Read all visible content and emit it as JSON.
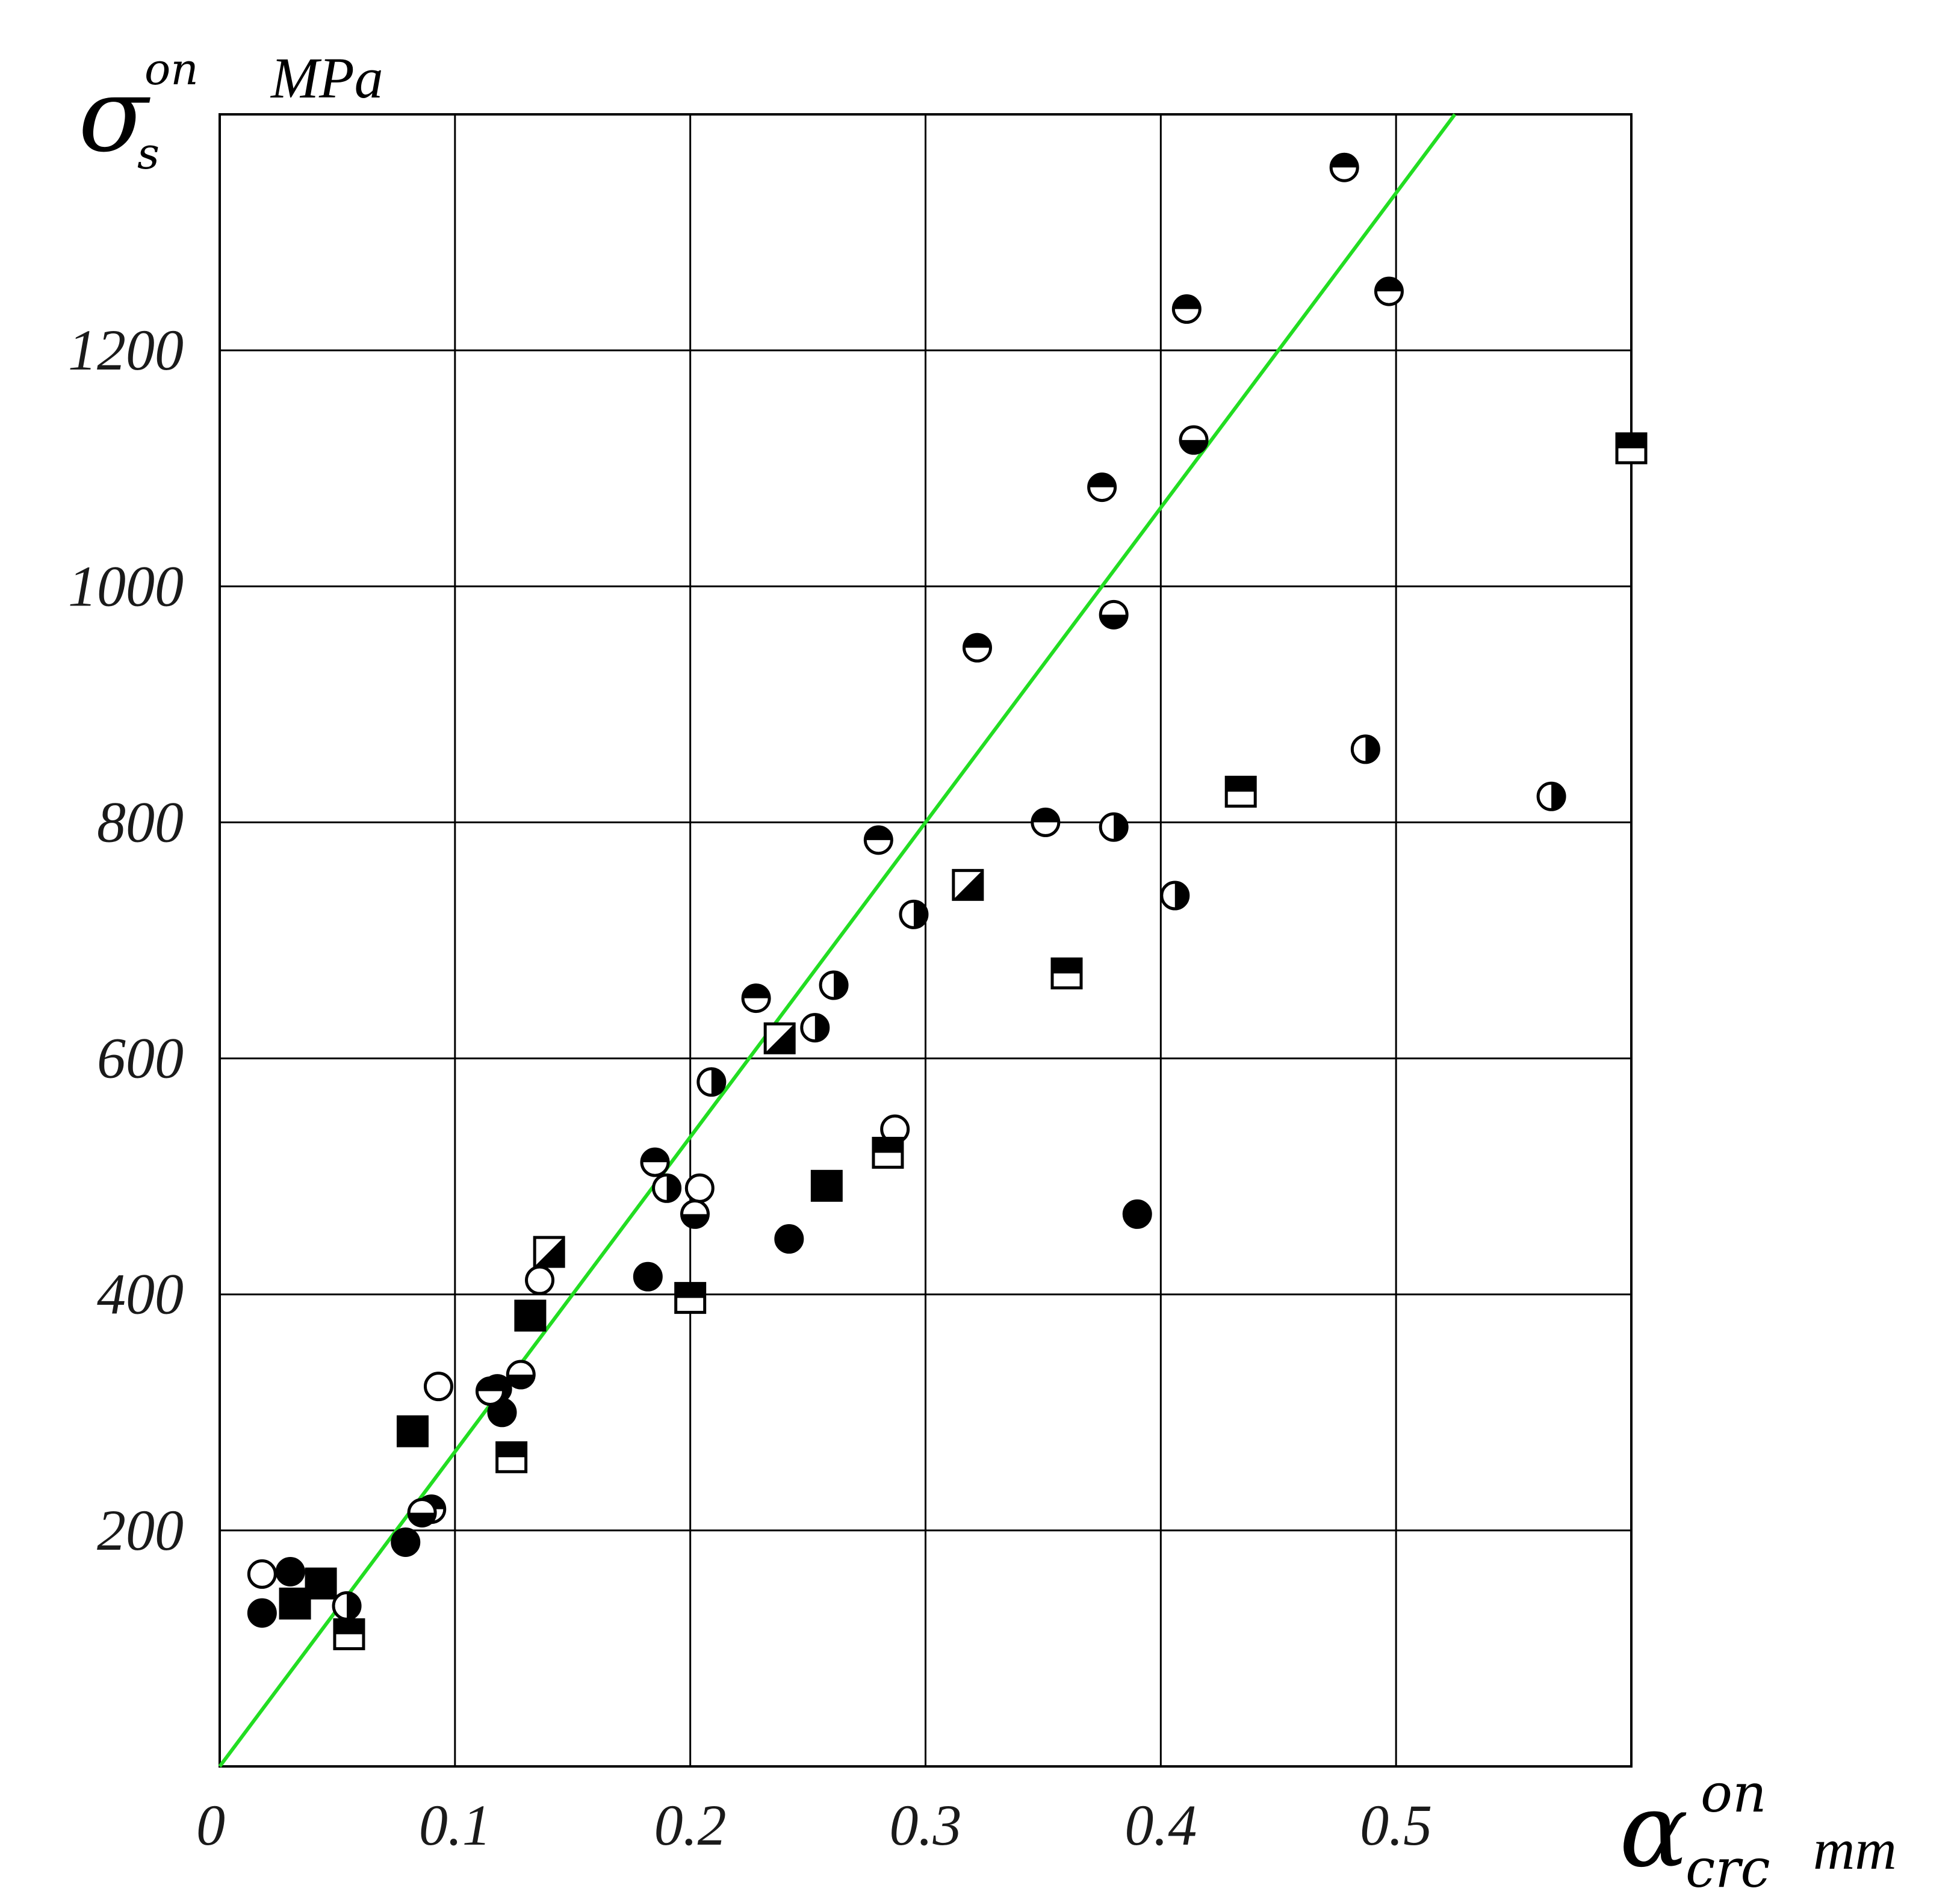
{
  "chart_data": {
    "type": "scatter",
    "title": "",
    "ylabel": {
      "symbol": "σ",
      "subscript": "s",
      "superscript": "on",
      "unit": "MPa"
    },
    "xlabel": {
      "symbol": "α",
      "subscript": "crc",
      "superscript": "on",
      "unit": "mm"
    },
    "xlim": [
      0,
      0.6
    ],
    "ylim": [
      0,
      1400
    ],
    "x_ticks": [
      0.1,
      0.2,
      0.3,
      0.4,
      0.5
    ],
    "x_tick_labels": [
      "0.1",
      "0.2",
      "0.3",
      "0.4",
      "0.5"
    ],
    "y_ticks": [
      200,
      400,
      600,
      800,
      1000,
      1200
    ],
    "y_tick_labels": [
      "200",
      "400",
      "600",
      "800",
      "1000",
      "1200"
    ],
    "origin_label": "0",
    "grid": true,
    "fit_line": {
      "color": "#22dd22",
      "points": [
        [
          0,
          0
        ],
        [
          0.525,
          1400
        ]
      ]
    },
    "series": [
      {
        "marker": "circle-filled",
        "points": [
          [
            0.018,
            130
          ],
          [
            0.03,
            165
          ],
          [
            0.079,
            190
          ],
          [
            0.118,
            320
          ],
          [
            0.12,
            300
          ],
          [
            0.182,
            415
          ],
          [
            0.242,
            447
          ],
          [
            0.39,
            468
          ]
        ]
      },
      {
        "marker": "circle-open",
        "points": [
          [
            0.018,
            163
          ],
          [
            0.093,
            322
          ],
          [
            0.136,
            412
          ],
          [
            0.204,
            490
          ],
          [
            0.287,
            540
          ]
        ]
      },
      {
        "marker": "circle-top-black",
        "points": [
          [
            0.09,
            218
          ],
          [
            0.115,
            318
          ],
          [
            0.185,
            512
          ],
          [
            0.228,
            651
          ],
          [
            0.28,
            785
          ],
          [
            0.322,
            948
          ],
          [
            0.351,
            800
          ],
          [
            0.375,
            1084
          ],
          [
            0.411,
            1235
          ],
          [
            0.478,
            1355
          ],
          [
            0.497,
            1250
          ]
        ]
      },
      {
        "marker": "circle-bottom-black",
        "points": [
          [
            0.086,
            215
          ],
          [
            0.128,
            332
          ],
          [
            0.202,
            468
          ],
          [
            0.38,
            976
          ],
          [
            0.414,
            1124
          ]
        ]
      },
      {
        "marker": "circle-right-black",
        "points": [
          [
            0.054,
            136
          ],
          [
            0.19,
            490
          ],
          [
            0.209,
            580
          ],
          [
            0.253,
            626
          ],
          [
            0.261,
            662
          ],
          [
            0.295,
            722
          ],
          [
            0.38,
            796
          ],
          [
            0.406,
            738
          ],
          [
            0.487,
            862
          ],
          [
            0.566,
            822
          ]
        ]
      },
      {
        "marker": "square-filled",
        "points": [
          [
            0.032,
            138
          ],
          [
            0.043,
            155
          ],
          [
            0.082,
            284
          ],
          [
            0.132,
            382
          ],
          [
            0.258,
            492
          ]
        ]
      },
      {
        "marker": "square-top-black",
        "points": [
          [
            0.055,
            112
          ],
          [
            0.124,
            262
          ],
          [
            0.2,
            397
          ],
          [
            0.284,
            520
          ],
          [
            0.36,
            672
          ],
          [
            0.434,
            826
          ],
          [
            0.6,
            1117
          ]
        ]
      },
      {
        "marker": "square-diagonal",
        "points": [
          [
            0.14,
            436
          ],
          [
            0.238,
            617
          ],
          [
            0.318,
            747
          ]
        ]
      }
    ]
  }
}
